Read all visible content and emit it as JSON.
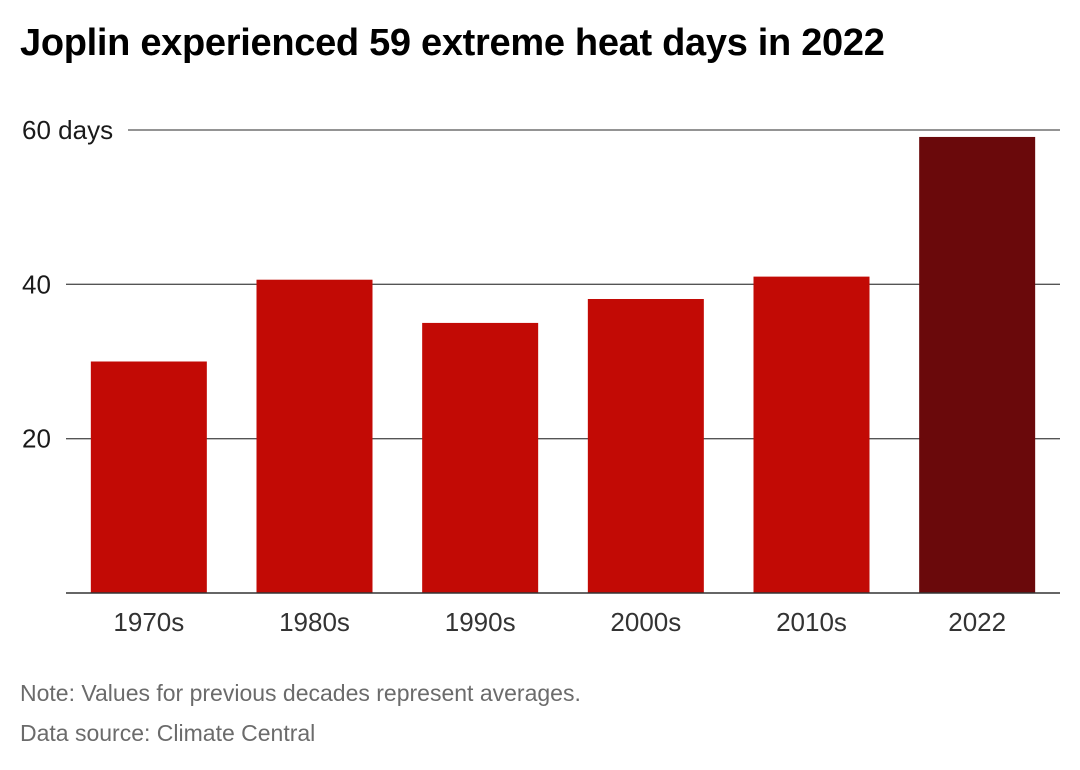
{
  "chart_data": {
    "type": "bar",
    "title": "Joplin experienced 59 extreme heat days in 2022",
    "categories": [
      "1970s",
      "1980s",
      "1990s",
      "2000s",
      "2010s",
      "2022"
    ],
    "values": [
      30,
      40.6,
      35,
      38.1,
      41,
      59.1
    ],
    "y_unit_label": "days",
    "ylim": [
      0,
      60
    ],
    "yticks": [
      {
        "value": 20,
        "label": "20"
      },
      {
        "value": 40,
        "label": "40"
      },
      {
        "value": 60,
        "label": "60 days"
      }
    ],
    "grid": true,
    "colors": {
      "default_bar": "#c20a05",
      "highlight_bar": "#6a090b",
      "gridline": "#555555",
      "baseline": "#333333"
    },
    "highlight_category": "2022"
  },
  "notes": {
    "note": "Note: Values for previous decades represent averages.",
    "source": "Data source: Climate Central"
  }
}
